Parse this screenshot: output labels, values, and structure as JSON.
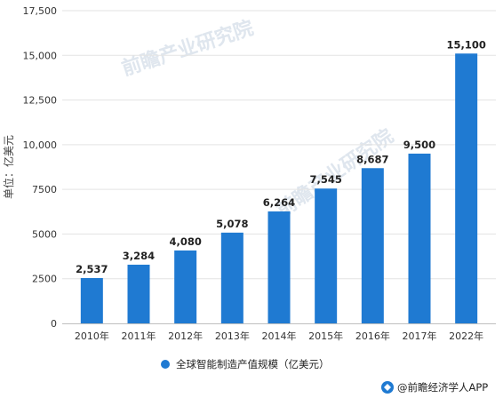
{
  "chart_data": {
    "type": "bar",
    "categories": [
      "2010年",
      "2011年",
      "2012年",
      "2013年",
      "2014年",
      "2015年",
      "2016年",
      "2017年",
      "2022年"
    ],
    "values": [
      2537,
      3284,
      4080,
      5078,
      6264,
      7545,
      8687,
      9500,
      15100
    ],
    "data_labels": [
      "2,537",
      "3,284",
      "4,080",
      "5,078",
      "6,264",
      "7,545",
      "8,687",
      "9,500",
      "15,100"
    ],
    "ylabel": "单位：亿美元",
    "ylim": [
      0,
      17500
    ],
    "y_ticks": [
      0,
      2500,
      5000,
      7500,
      10000,
      12500,
      15000,
      17500
    ],
    "y_tick_labels": [
      "0",
      "2500",
      "5000",
      "7500",
      "10,000",
      "12,500",
      "15,000",
      "17,500"
    ],
    "grid": true,
    "legend_position": "bottom",
    "series": [
      {
        "name": "全球智能制造产值规模（亿美元）",
        "color": "#1f7ad2"
      }
    ]
  },
  "watermark": "前瞻产业研究院",
  "footer": {
    "logo_icon": "qianzhan-logo-icon",
    "text": "@前瞻经济学人APP"
  }
}
